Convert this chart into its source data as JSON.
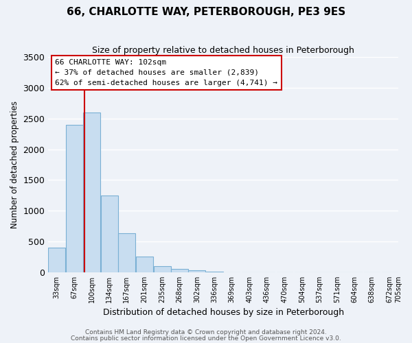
{
  "title": "66, CHARLOTTE WAY, PETERBOROUGH, PE3 9ES",
  "subtitle": "Size of property relative to detached houses in Peterborough",
  "xlabel": "Distribution of detached houses by size in Peterborough",
  "ylabel": "Number of detached properties",
  "bar_left_edges": [
    33,
    67,
    100,
    134,
    167,
    201,
    235,
    268,
    302,
    336,
    369,
    403,
    436,
    470,
    504,
    537,
    571,
    604,
    638,
    672
  ],
  "bar_heights": [
    400,
    2400,
    2600,
    1250,
    630,
    260,
    100,
    50,
    30,
    10,
    0,
    0,
    0,
    0,
    0,
    0,
    0,
    0,
    0,
    0
  ],
  "bin_width": 33,
  "bar_color": "#c8ddf0",
  "bar_edge_color": "#7ab0d4",
  "x_tick_labels": [
    "33sqm",
    "67sqm",
    "100sqm",
    "134sqm",
    "167sqm",
    "201sqm",
    "235sqm",
    "268sqm",
    "302sqm",
    "336sqm",
    "369sqm",
    "403sqm",
    "436sqm",
    "470sqm",
    "504sqm",
    "537sqm",
    "571sqm",
    "604sqm",
    "638sqm",
    "672sqm",
    "705sqm"
  ],
  "ylim": [
    0,
    3500
  ],
  "yticks": [
    0,
    500,
    1000,
    1500,
    2000,
    2500,
    3000,
    3500
  ],
  "property_size": 102,
  "red_line_color": "#cc0000",
  "annotation_title": "66 CHARLOTTE WAY: 102sqm",
  "annotation_line1": "← 37% of detached houses are smaller (2,839)",
  "annotation_line2": "62% of semi-detached houses are larger (4,741) →",
  "annotation_box_color": "#ffffff",
  "annotation_box_edge": "#cc0000",
  "footer_line1": "Contains HM Land Registry data © Crown copyright and database right 2024.",
  "footer_line2": "Contains public sector information licensed under the Open Government Licence v3.0.",
  "background_color": "#eef2f8",
  "grid_color": "#ffffff"
}
